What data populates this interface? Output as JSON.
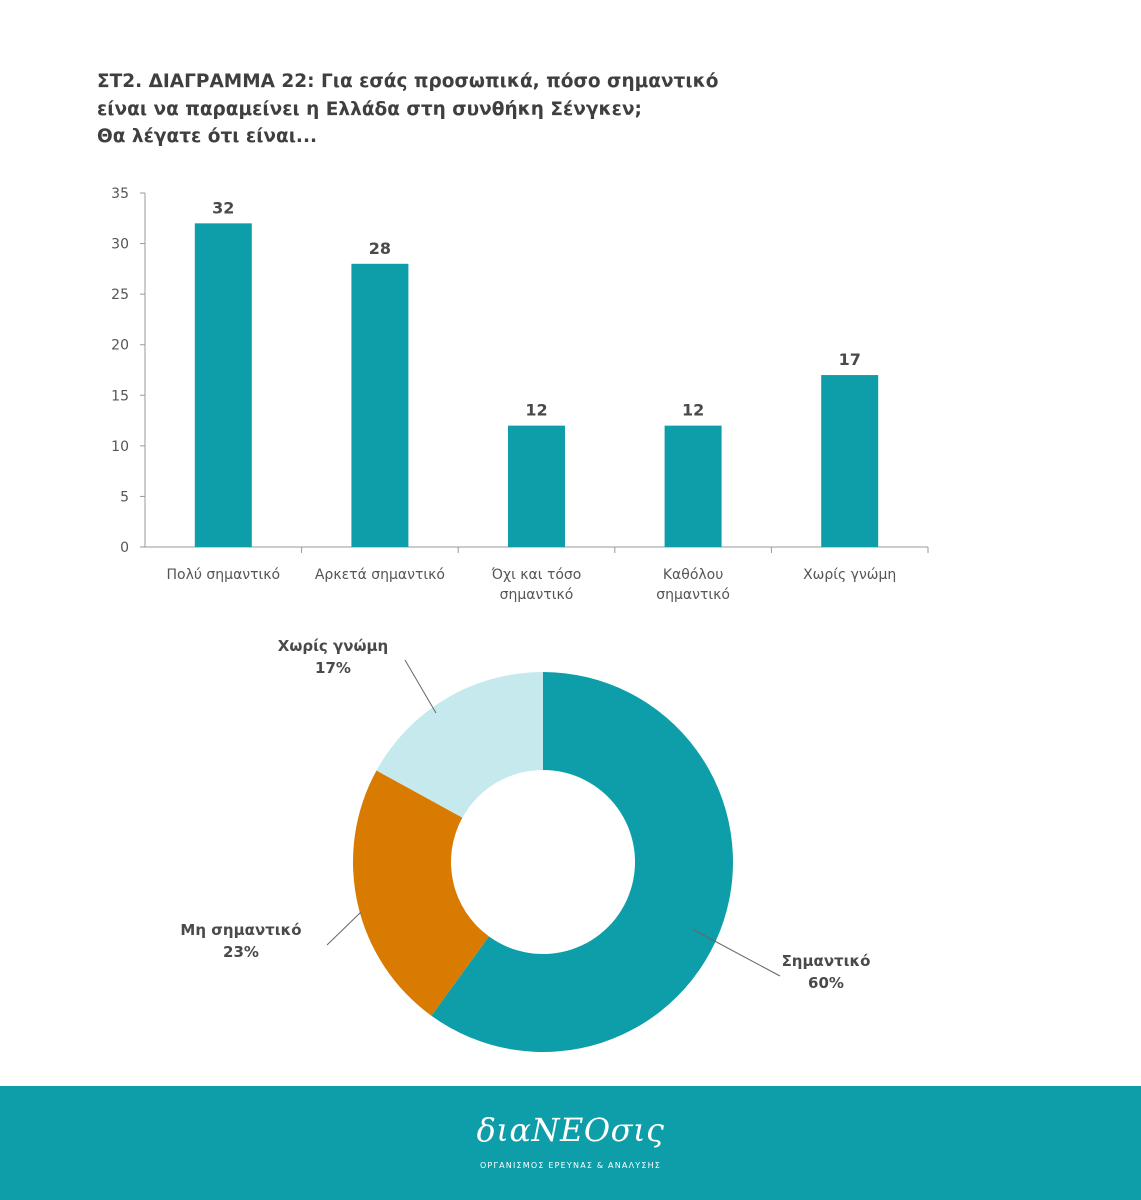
{
  "title_lines": [
    "ΣΤ2. ΔΙΑΓΡΑΜΜΑ 22: Για εσάς προσωπικά, πόσο σημαντικό",
    "είναι να παραμείνει η Ελλάδα στη συνθήκη Σένγκεν;",
    "Θα λέγατε ότι είναι..."
  ],
  "chart_data": [
    {
      "type": "bar",
      "categories": [
        [
          "Πολύ σημαντικό"
        ],
        [
          "Αρκετά σημαντικό"
        ],
        [
          "Όχι και τόσο",
          "σημαντικό"
        ],
        [
          "Καθόλου",
          "σημαντικό"
        ],
        [
          "Χωρίς γνώμη"
        ]
      ],
      "values": [
        32,
        28,
        12,
        12,
        17
      ],
      "ylim": [
        0,
        35
      ],
      "yticks": [
        0,
        5,
        10,
        15,
        20,
        25,
        30,
        35
      ],
      "grid": false,
      "color": "#0e9ea9"
    },
    {
      "type": "pie",
      "donut": true,
      "slices": [
        {
          "label": "Σημαντικό",
          "pct_label": "60%",
          "value": 60,
          "color": "#0e9ea9"
        },
        {
          "label": "Μη σημαντικό",
          "pct_label": "23%",
          "value": 23,
          "color": "#d97b00"
        },
        {
          "label": "Χωρίς γνώμη",
          "pct_label": "17%",
          "value": 17,
          "color": "#c5e9ec"
        }
      ]
    }
  ],
  "footer": {
    "logo": "διαΝΕΟσις",
    "tagline": "ΟΡΓΑΝΙΣΜΟΣ ΕΡΕΥΝΑΣ & ΑΝΑΛΥΣΗΣ",
    "background": "#0e9ea9"
  }
}
